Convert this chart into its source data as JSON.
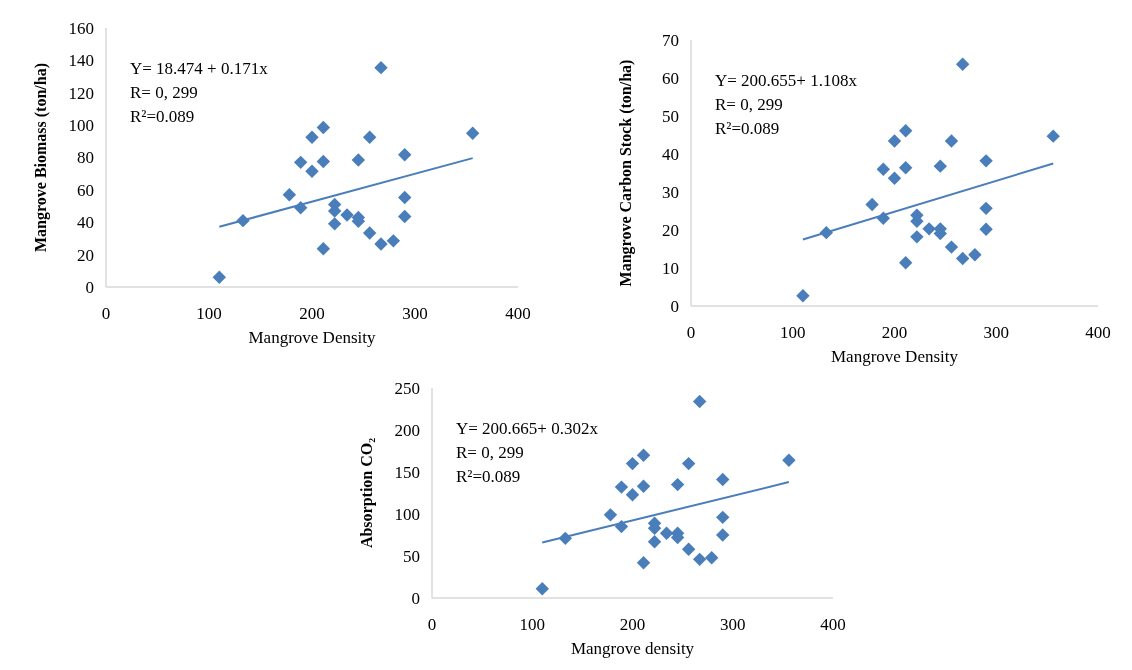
{
  "chart_data": [
    {
      "type": "scatter",
      "xlabel": "Mangrove Density",
      "ylabel": "Mangrove Biomass (ton/ha)",
      "xlim": [
        0,
        400
      ],
      "xticks": [
        0,
        100,
        200,
        300,
        400
      ],
      "ylim": [
        0,
        160
      ],
      "yticks": [
        0,
        20,
        40,
        60,
        80,
        100,
        120,
        140,
        160
      ],
      "marker": "diamond",
      "annotations": [
        "Y= 18.474 + 0.171x",
        "R= 0, 299",
        "R²=0.089"
      ],
      "series": [
        {
          "color": "#4a7ebb",
          "x": [
            110,
            133,
            178,
            189,
            189,
            200,
            200,
            211,
            211,
            211,
            222,
            222,
            222,
            234,
            245,
            245,
            245,
            256,
            256,
            267,
            267,
            279,
            290,
            290,
            290,
            356
          ],
          "values": [
            6,
            41,
            57,
            49,
            77,
            92.5,
            71.5,
            98.5,
            77.5,
            23.6,
            51,
            47,
            39,
            44.5,
            78.5,
            43,
            40.6,
            92.5,
            33.4,
            135.5,
            26.6,
            28.5,
            81.7,
            55.3,
            43.6,
            95
          ]
        },
        {
          "type": "line",
          "color": "#4a7ebb",
          "marker": "none",
          "x": [
            110,
            356
          ],
          "values": [
            37.2,
            79.6
          ]
        }
      ]
    },
    {
      "type": "scatter",
      "xlabel": "Mangrove Density",
      "ylabel": "Mangrove Carbon Stock (ton/ha)",
      "xlim": [
        0,
        400
      ],
      "xticks": [
        0,
        100,
        200,
        300,
        400
      ],
      "ylim": [
        0,
        70
      ],
      "yticks": [
        0,
        10,
        20,
        30,
        40,
        50,
        60,
        70
      ],
      "marker": "diamond",
      "annotations": [
        "Y= 200.655+ 1.108x",
        "R= 0, 299",
        "R²=0.089"
      ],
      "series": [
        {
          "color": "#4a7ebb",
          "x": [
            110,
            133,
            178,
            189,
            189,
            200,
            200,
            211,
            211,
            211,
            222,
            222,
            222,
            234,
            245,
            245,
            245,
            256,
            256,
            267,
            267,
            279,
            290,
            290,
            290,
            356
          ],
          "values": [
            2.7,
            19.3,
            26.7,
            23.1,
            36,
            43.4,
            33.6,
            46.1,
            36.4,
            11.4,
            23.9,
            22.3,
            18.2,
            20.3,
            36.8,
            20.3,
            19.1,
            43.4,
            15.5,
            63.6,
            12.5,
            13.5,
            38.2,
            25.7,
            20.2,
            44.7
          ]
        },
        {
          "type": "line",
          "color": "#4a7ebb",
          "marker": "none",
          "x": [
            110,
            356
          ],
          "values": [
            17.5,
            37.5
          ]
        }
      ]
    },
    {
      "type": "scatter",
      "xlabel": "Mangrove density",
      "ylabel": "Absorption CO₂",
      "xlim": [
        0,
        400
      ],
      "xticks": [
        0,
        100,
        200,
        300,
        400
      ],
      "ylim": [
        0,
        250
      ],
      "yticks": [
        0,
        50,
        100,
        150,
        200,
        250
      ],
      "marker": "diamond",
      "annotations": [
        "Y= 200.665+ 0.302x",
        "R= 0, 299",
        "R²=0.089"
      ],
      "series": [
        {
          "color": "#4a7ebb",
          "x": [
            110,
            133,
            178,
            189,
            189,
            200,
            200,
            211,
            211,
            211,
            222,
            222,
            222,
            234,
            245,
            245,
            245,
            256,
            256,
            267,
            267,
            279,
            290,
            290,
            290,
            356
          ],
          "values": [
            11,
            71,
            99,
            85,
            132,
            160,
            123,
            170,
            133,
            42,
            89,
            83,
            67,
            77,
            135,
            77,
            72,
            160,
            58,
            234,
            46,
            48,
            141,
            96,
            75,
            164
          ]
        },
        {
          "type": "line",
          "color": "#4a7ebb",
          "marker": "none",
          "x": [
            110,
            356
          ],
          "values": [
            66,
            138
          ]
        }
      ]
    }
  ]
}
